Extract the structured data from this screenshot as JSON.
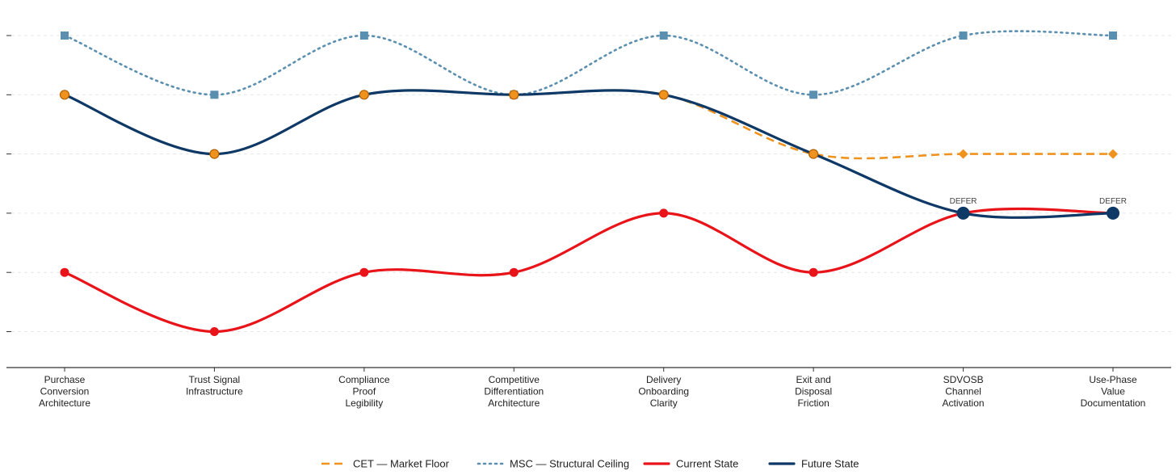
{
  "chart_data": {
    "type": "line",
    "title": "",
    "xlabel": "",
    "ylabel": "",
    "ylim": [
      0.5,
      6.5
    ],
    "yticks": [
      1,
      2,
      3,
      4,
      5,
      6
    ],
    "show_y_tick_labels": false,
    "grid": true,
    "legend_position": "bottom",
    "categories": [
      "Purchase\nConversion\nArchitecture",
      "Trust Signal\nInfrastructure",
      "Compliance\nProof\nLegibility",
      "Competitive\nDifferentiation\nArchitecture",
      "Delivery\nOnboarding\nClarity",
      "Exit and\nDisposal\nFriction",
      "SDVOSB\nChannel\nActivation",
      "Use-Phase\nValue\nDocumentation"
    ],
    "series": [
      {
        "name": "MSC — Structural Ceiling",
        "key": "msc",
        "color": "#5b8fb0",
        "style": "dotted",
        "marker": "square",
        "values": [
          6,
          5,
          6,
          5,
          6,
          5,
          6,
          6
        ]
      },
      {
        "name": "CET — Market Floor",
        "key": "cet",
        "color": "#f0921e",
        "style": "dashed",
        "marker": "diamond",
        "values": [
          5,
          4,
          5,
          5,
          5,
          4,
          4,
          4
        ]
      },
      {
        "name": "Current State",
        "key": "current",
        "color": "#e8141a",
        "style": "solid",
        "marker": "circle",
        "values": [
          2,
          1,
          2,
          2,
          3,
          2,
          3,
          3
        ]
      },
      {
        "name": "Future State",
        "key": "future",
        "color": "#0e3866",
        "style": "solid",
        "marker": "none",
        "values": [
          5,
          4,
          5,
          5,
          5,
          4,
          3,
          3
        ]
      }
    ],
    "future_markers": [
      {
        "index": 0,
        "kind": "orange-circle"
      },
      {
        "index": 1,
        "kind": "orange-circle"
      },
      {
        "index": 2,
        "kind": "orange-circle"
      },
      {
        "index": 3,
        "kind": "orange-circle"
      },
      {
        "index": 4,
        "kind": "orange-circle"
      },
      {
        "index": 5,
        "kind": "orange-circle"
      },
      {
        "index": 6,
        "kind": "navy-big"
      },
      {
        "index": 7,
        "kind": "navy-big"
      }
    ],
    "annotations": [
      {
        "index": 6,
        "value": 3,
        "text": "DEFER"
      },
      {
        "index": 7,
        "value": 3,
        "text": "DEFER"
      }
    ],
    "legend": [
      {
        "label": "CET — Market Floor",
        "key": "cet"
      },
      {
        "label": "MSC — Structural Ceiling",
        "key": "msc"
      },
      {
        "label": "Current State",
        "key": "current"
      },
      {
        "label": "Future State",
        "key": "future"
      }
    ],
    "colors": {
      "orange_marker_fill": "#f0921e",
      "orange_marker_stroke": "#b35f00"
    }
  }
}
